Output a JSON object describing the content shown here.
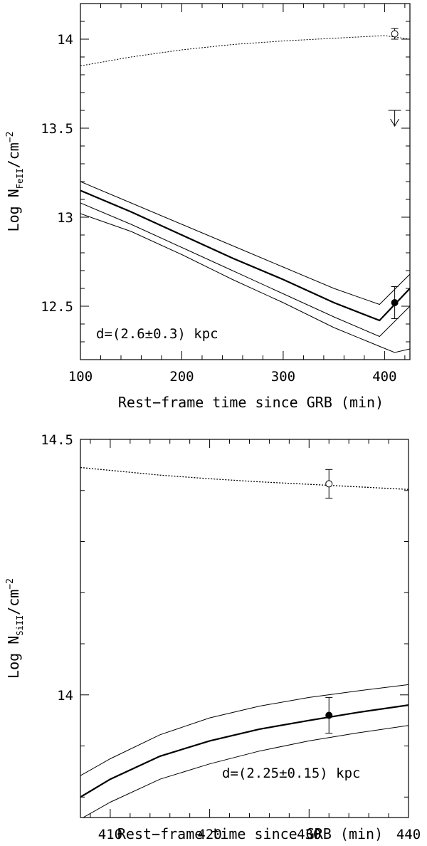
{
  "chart_data": [
    {
      "type": "line",
      "panel": "top",
      "xlabel": "Rest−frame time since GRB (min)",
      "ylabel_main": "Log N",
      "ylabel_sub": "FeII",
      "ylabel_tail": "/cm",
      "ylabel_sup": "−2",
      "xlim": [
        100,
        425
      ],
      "ylim": [
        12.2,
        14.2
      ],
      "xticks": [
        100,
        200,
        300,
        400
      ],
      "xticklabels": [
        "100",
        "200",
        "300",
        "400"
      ],
      "yticks": [
        12.5,
        13,
        13.5,
        14
      ],
      "yticklabels": [
        "12.5",
        "13",
        "13.5",
        "14"
      ],
      "annotation": "d=(2.6±0.3) kpc",
      "series": [
        {
          "style": "dotted",
          "width": 1,
          "x": [
            100,
            150,
            200,
            250,
            300,
            350,
            400,
            425
          ],
          "y": [
            13.85,
            13.9,
            13.94,
            13.97,
            13.99,
            14.005,
            14.02,
            14.0
          ]
        },
        {
          "style": "solid",
          "width": 1,
          "x": [
            100,
            150,
            200,
            250,
            300,
            350,
            395,
            425
          ],
          "y": [
            13.2,
            13.08,
            12.96,
            12.84,
            12.72,
            12.6,
            12.51,
            12.68
          ]
        },
        {
          "style": "solid",
          "width": 2.2,
          "x": [
            100,
            150,
            200,
            250,
            300,
            350,
            395,
            425
          ],
          "y": [
            13.15,
            13.03,
            12.9,
            12.77,
            12.65,
            12.52,
            12.42,
            12.6
          ]
        },
        {
          "style": "solid",
          "width": 1,
          "x": [
            100,
            150,
            200,
            250,
            300,
            350,
            395,
            425
          ],
          "y": [
            13.08,
            12.96,
            12.83,
            12.7,
            12.57,
            12.44,
            12.33,
            12.5
          ]
        },
        {
          "style": "solid",
          "width": 1,
          "x": [
            100,
            150,
            200,
            250,
            300,
            350,
            397,
            410,
            425
          ],
          "y": [
            13.02,
            12.92,
            12.79,
            12.65,
            12.52,
            12.38,
            12.27,
            12.24,
            12.26
          ]
        }
      ],
      "points": [
        {
          "x": 410,
          "y": 14.03,
          "err": 0.03,
          "filled": false
        },
        {
          "x": 410,
          "y": 12.52,
          "err": 0.09,
          "filled": true
        }
      ],
      "upper_limits": [
        {
          "x": 410,
          "y": 13.6
        }
      ]
    },
    {
      "type": "line",
      "panel": "bottom",
      "xlabel": "Rest−frame time since GRB (min)",
      "ylabel_main": "Log N",
      "ylabel_sub": "SiII",
      "ylabel_tail": "/cm",
      "ylabel_sup": "−2",
      "xlim": [
        407,
        440
      ],
      "ylim": [
        13.76,
        14.5
      ],
      "xticks": [
        410,
        420,
        430,
        440
      ],
      "xticklabels": [
        "410",
        "420",
        "430",
        "440"
      ],
      "yticks": [
        14,
        14.5
      ],
      "yticklabels": [
        "14",
        "14.5"
      ],
      "minor_yticks": [
        13.8,
        13.9,
        14.1,
        14.2,
        14.3,
        14.4
      ],
      "annotation": "d=(2.25±0.15) kpc",
      "series": [
        {
          "style": "dotted",
          "width": 1.3,
          "x": [
            407,
            415,
            420,
            425,
            430,
            435,
            440
          ],
          "y": [
            14.445,
            14.43,
            14.423,
            14.417,
            14.412,
            14.407,
            14.402
          ]
        },
        {
          "style": "solid",
          "width": 1,
          "x": [
            407,
            410,
            415,
            420,
            425,
            430,
            435,
            440
          ],
          "y": [
            13.842,
            13.875,
            13.922,
            13.955,
            13.978,
            13.995,
            14.008,
            14.02
          ]
        },
        {
          "style": "solid",
          "width": 2.2,
          "x": [
            407,
            410,
            415,
            420,
            425,
            430,
            435,
            440
          ],
          "y": [
            13.8,
            13.835,
            13.88,
            13.91,
            13.933,
            13.95,
            13.966,
            13.98
          ]
        },
        {
          "style": "solid",
          "width": 1,
          "x": [
            407,
            410,
            415,
            420,
            425,
            430,
            435,
            440
          ],
          "y": [
            13.757,
            13.79,
            13.835,
            13.865,
            13.89,
            13.91,
            13.926,
            13.94
          ]
        }
      ],
      "points": [
        {
          "x": 432,
          "y": 14.413,
          "err": 0.028,
          "filled": false
        },
        {
          "x": 432,
          "y": 13.96,
          "err": 0.035,
          "filled": true
        }
      ],
      "upper_limits": []
    }
  ]
}
